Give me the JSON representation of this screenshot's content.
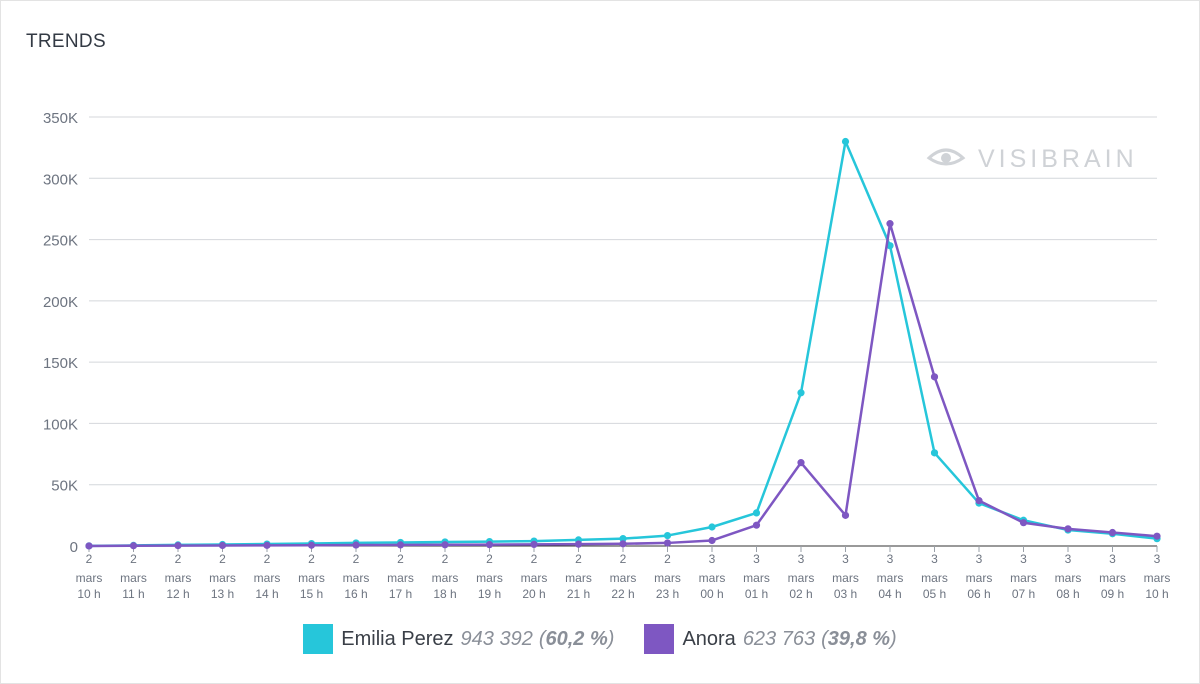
{
  "header": {
    "title": "TRENDS"
  },
  "watermark": {
    "text": "VISIBRAIN",
    "icon": "eye-icon"
  },
  "chart_data": {
    "type": "line",
    "title": "TRENDS",
    "xlabel": "",
    "ylabel": "",
    "ylim": [
      0,
      350000
    ],
    "y_ticks": [
      0,
      50000,
      100000,
      150000,
      200000,
      250000,
      300000,
      350000
    ],
    "y_tick_labels": [
      "0",
      "50K",
      "100K",
      "150K",
      "200K",
      "250K",
      "300K",
      "350K"
    ],
    "grid": true,
    "categories": [
      [
        "2",
        "mars",
        "10 h"
      ],
      [
        "2",
        "mars",
        "11 h"
      ],
      [
        "2",
        "mars",
        "12 h"
      ],
      [
        "2",
        "mars",
        "13 h"
      ],
      [
        "2",
        "mars",
        "14 h"
      ],
      [
        "2",
        "mars",
        "15 h"
      ],
      [
        "2",
        "mars",
        "16 h"
      ],
      [
        "2",
        "mars",
        "17 h"
      ],
      [
        "2",
        "mars",
        "18 h"
      ],
      [
        "2",
        "mars",
        "19 h"
      ],
      [
        "2",
        "mars",
        "20 h"
      ],
      [
        "2",
        "mars",
        "21 h"
      ],
      [
        "2",
        "mars",
        "22 h"
      ],
      [
        "2",
        "mars",
        "23 h"
      ],
      [
        "3",
        "mars",
        "00 h"
      ],
      [
        "3",
        "mars",
        "01 h"
      ],
      [
        "3",
        "mars",
        "02 h"
      ],
      [
        "3",
        "mars",
        "03 h"
      ],
      [
        "3",
        "mars",
        "04 h"
      ],
      [
        "3",
        "mars",
        "05 h"
      ],
      [
        "3",
        "mars",
        "06 h"
      ],
      [
        "3",
        "mars",
        "07 h"
      ],
      [
        "3",
        "mars",
        "08 h"
      ],
      [
        "3",
        "mars",
        "09 h"
      ],
      [
        "3",
        "mars",
        "10 h"
      ]
    ],
    "series": [
      {
        "name": "Emilia Perez",
        "color": "#26c6da",
        "values": [
          100,
          500,
          900,
          1200,
          1600,
          2000,
          2500,
          2900,
          3300,
          3600,
          4000,
          5000,
          6000,
          8500,
          15500,
          27000,
          125000,
          330000,
          245000,
          76000,
          35000,
          21000,
          13000,
          10000,
          6000
        ]
      },
      {
        "name": "Anora",
        "color": "#7e57c2",
        "values": [
          50,
          200,
          300,
          400,
          500,
          600,
          800,
          900,
          1000,
          1100,
          1300,
          1500,
          1800,
          2500,
          4500,
          17000,
          68000,
          25000,
          263000,
          138000,
          37000,
          19000,
          14000,
          11000,
          8000
        ]
      }
    ],
    "legend_placement": "bottom",
    "legend": [
      {
        "name": "Emilia Perez",
        "total": "943 392",
        "percent": "60,2 %",
        "color": "#26c6da"
      },
      {
        "name": "Anora",
        "total": "623 763",
        "percent": "39,8 %",
        "color": "#7e57c2"
      }
    ]
  }
}
